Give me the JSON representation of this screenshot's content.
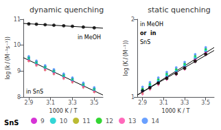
{
  "chart_data": [
    {
      "type": "scatter",
      "title": "dynamic quenching",
      "xlabel": "1000 K / T",
      "ylabel": "log (k / (M⁻¹s⁻¹))",
      "xlim": [
        2.85,
        3.58
      ],
      "ylim": [
        8,
        11
      ],
      "xticks": [
        2.9,
        3.1,
        3.3,
        3.5
      ],
      "yticks": [
        8,
        9,
        10,
        11
      ],
      "grid": false,
      "legend": "bottom",
      "annotations": [
        "in MeOH",
        "in SnS",
        "SnS"
      ],
      "series": [
        {
          "type": "line",
          "color": "#000000",
          "line_style": "solid",
          "x": [
            2.85,
            3.58
          ],
          "values": [
            10.8389,
            10.6554
          ]
        },
        {
          "type": "scatter",
          "color": "#000000",
          "marker": "circle",
          "x": [
            2.9,
            2.97,
            3.05,
            3.13,
            3.22,
            3.3,
            3.4,
            3.5
          ],
          "values": [
            10.82,
            10.81,
            10.79,
            10.77,
            10.75,
            10.73,
            10.7,
            10.67
          ]
        },
        {
          "type": "line",
          "color": "#000000",
          "line_style": "solid",
          "x": [
            2.85,
            3.58
          ],
          "values": [
            9.5181,
            8.0759
          ]
        },
        {
          "name": "9",
          "type": "scatter",
          "color": "#cc00cc",
          "marker": "circle",
          "x": [
            2.9,
            2.97,
            3.05,
            3.13,
            3.22,
            3.3,
            3.4,
            3.5
          ],
          "values": [
            9.45,
            9.28,
            9.1,
            8.95,
            8.78,
            8.63,
            8.43,
            8.25
          ]
        },
        {
          "name": "10",
          "type": "scatter",
          "color": "#00cccc",
          "marker": "square",
          "x": [
            2.9,
            2.97,
            3.05,
            3.13,
            3.22,
            3.3,
            3.4,
            3.5
          ],
          "values": [
            9.49,
            9.32,
            9.14,
            8.99,
            8.82,
            8.67,
            8.47,
            8.29
          ]
        },
        {
          "name": "11",
          "type": "scatter",
          "color": "#aaaa00",
          "marker": "triangle",
          "x": [
            2.9,
            2.97,
            3.05,
            3.13,
            3.22,
            3.3,
            3.4,
            3.5
          ],
          "values": [
            9.41,
            9.24,
            9.06,
            8.91,
            8.74,
            8.59,
            8.39,
            8.21
          ]
        },
        {
          "name": "12",
          "type": "scatter",
          "color": "#00cc00",
          "marker": "diamond",
          "x": [
            2.9,
            2.97,
            3.05,
            3.13,
            3.22,
            3.3,
            3.4,
            3.5
          ],
          "values": [
            9.53,
            9.36,
            9.18,
            9.03,
            8.86,
            8.71,
            8.51,
            8.33
          ]
        },
        {
          "name": "13",
          "type": "scatter",
          "color": "#ff44aa",
          "marker": "triangle_down",
          "x": [
            2.9,
            2.97,
            3.05,
            3.13,
            3.22,
            3.3,
            3.4,
            3.5
          ],
          "values": [
            9.37,
            9.2,
            9.02,
            8.87,
            8.7,
            8.55,
            8.35,
            8.17
          ]
        },
        {
          "name": "14",
          "type": "scatter",
          "color": "#4488ff",
          "marker": "pentagon",
          "x": [
            2.9,
            2.97,
            3.05,
            3.13,
            3.22,
            3.3,
            3.4,
            3.5
          ],
          "values": [
            9.57,
            9.4,
            9.22,
            9.07,
            8.9,
            8.75,
            8.55,
            8.37
          ]
        }
      ]
    },
    {
      "type": "scatter",
      "title": "static quenching",
      "xlabel": "1000 K / T",
      "ylabel": "log (K / (M⁻¹))",
      "xlim": [
        2.85,
        3.58
      ],
      "ylim": [
        1,
        2
      ],
      "xticks": [
        2.9,
        3.1,
        3.3,
        3.5
      ],
      "yticks": [
        1,
        2
      ],
      "grid": false,
      "legend": "bottom",
      "annotations": [
        "in MeOH",
        "or  in",
        "SnS"
      ],
      "series": [
        {
          "type": "line",
          "color": "#000000",
          "line_style": "solid",
          "x": [
            2.85,
            3.58
          ],
          "values": [
            1.0258,
            1.5982
          ]
        },
        {
          "type": "scatter",
          "color": "#000000",
          "marker": "circle",
          "x": [
            2.9,
            2.97,
            3.05,
            3.13,
            3.22,
            3.3,
            3.4,
            3.5
          ],
          "values": [
            1.08,
            1.12,
            1.18,
            1.24,
            1.3,
            1.37,
            1.46,
            1.55
          ]
        },
        {
          "type": "line",
          "color": "#000000",
          "line_style": "solid",
          "x": [
            2.85,
            3.58
          ],
          "values": [
            1.0233,
            1.6367
          ]
        },
        {
          "name": "9",
          "type": "scatter",
          "color": "#cc00cc",
          "marker": "circle",
          "x": [
            2.9,
            2.97,
            3.05,
            3.13,
            3.22,
            3.3,
            3.4,
            3.5
          ],
          "values": [
            1.07,
            1.13,
            1.19,
            1.26,
            1.32,
            1.39,
            1.49,
            1.58
          ]
        },
        {
          "name": "10",
          "type": "scatter",
          "color": "#00cccc",
          "marker": "square",
          "x": [
            2.9,
            2.97,
            3.05,
            3.13,
            3.22,
            3.3,
            3.4,
            3.5
          ],
          "values": [
            1.09,
            1.15,
            1.21,
            1.28,
            1.34,
            1.41,
            1.51,
            1.6
          ]
        },
        {
          "name": "11",
          "type": "scatter",
          "color": "#aaaa00",
          "marker": "triangle",
          "x": [
            2.9,
            2.97,
            3.05,
            3.13,
            3.22,
            3.3,
            3.4,
            3.5
          ],
          "values": [
            1.05,
            1.11,
            1.17,
            1.24,
            1.3,
            1.37,
            1.47,
            1.56
          ]
        },
        {
          "name": "12",
          "type": "scatter",
          "color": "#00cc00",
          "marker": "diamond",
          "x": [
            2.9,
            2.97,
            3.05,
            3.13,
            3.22,
            3.3,
            3.4,
            3.5
          ],
          "values": [
            1.11,
            1.17,
            1.23,
            1.3,
            1.36,
            1.43,
            1.53,
            1.62
          ]
        },
        {
          "name": "13",
          "type": "scatter",
          "color": "#ff44aa",
          "marker": "triangle_down",
          "x": [
            2.9,
            2.97,
            3.05,
            3.13,
            3.22,
            3.3,
            3.4,
            3.5
          ],
          "values": [
            1.03,
            1.09,
            1.15,
            1.22,
            1.28,
            1.35,
            1.45,
            1.54
          ]
        },
        {
          "name": "14",
          "type": "scatter",
          "color": "#4488ff",
          "marker": "pentagon",
          "x": [
            2.9,
            2.97,
            3.05,
            3.13,
            3.22,
            3.3,
            3.4,
            3.5
          ],
          "values": [
            1.13,
            1.19,
            1.25,
            1.32,
            1.38,
            1.45,
            1.55,
            1.64
          ]
        }
      ]
    }
  ]
}
